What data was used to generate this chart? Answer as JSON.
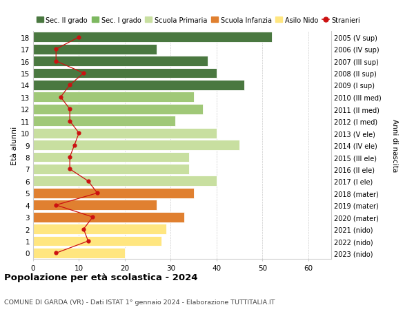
{
  "ages": [
    0,
    1,
    2,
    3,
    4,
    5,
    6,
    7,
    8,
    9,
    10,
    11,
    12,
    13,
    14,
    15,
    16,
    17,
    18
  ],
  "years": [
    "2023 (nido)",
    "2022 (nido)",
    "2021 (nido)",
    "2020 (mater)",
    "2019 (mater)",
    "2018 (mater)",
    "2017 (I ele)",
    "2016 (II ele)",
    "2015 (III ele)",
    "2014 (IV ele)",
    "2013 (V ele)",
    "2012 (I med)",
    "2011 (II med)",
    "2010 (III med)",
    "2009 (I sup)",
    "2008 (II sup)",
    "2007 (III sup)",
    "2006 (IV sup)",
    "2005 (V sup)"
  ],
  "bar_values": [
    20,
    28,
    29,
    33,
    27,
    35,
    40,
    34,
    34,
    45,
    40,
    31,
    37,
    35,
    46,
    40,
    38,
    27,
    52
  ],
  "bar_colors": [
    "#FFE680",
    "#FFE680",
    "#FFE680",
    "#E08030",
    "#E08030",
    "#E08030",
    "#C8DFA0",
    "#C8DFA0",
    "#C8DFA0",
    "#C8DFA0",
    "#C8DFA0",
    "#A0C878",
    "#A0C878",
    "#A0C878",
    "#4A7840",
    "#4A7840",
    "#4A7840",
    "#4A7840",
    "#4A7840"
  ],
  "stranieri": [
    5,
    12,
    11,
    13,
    5,
    14,
    12,
    8,
    8,
    9,
    10,
    8,
    8,
    6,
    8,
    11,
    5,
    5,
    10
  ],
  "title": "Popolazione per età scolastica - 2024",
  "subtitle": "COMUNE DI GARDA (VR) - Dati ISTAT 1° gennaio 2024 - Elaborazione TUTTITALIA.IT",
  "ylabel": "Età alunni",
  "right_label": "Anni di nascita",
  "color_sec2": "#4A7840",
  "color_sec1": "#7DB860",
  "color_prim": "#C8DFA0",
  "color_inf": "#E08030",
  "color_nido": "#FFE680",
  "color_str": "#CC1111",
  "legend_labels": [
    "Sec. II grado",
    "Sec. I grado",
    "Scuola Primaria",
    "Scuola Infanzia",
    "Asilo Nido",
    "Stranieri"
  ],
  "bg_color": "#F5F5F5",
  "plot_bg": "#FFFFFF"
}
